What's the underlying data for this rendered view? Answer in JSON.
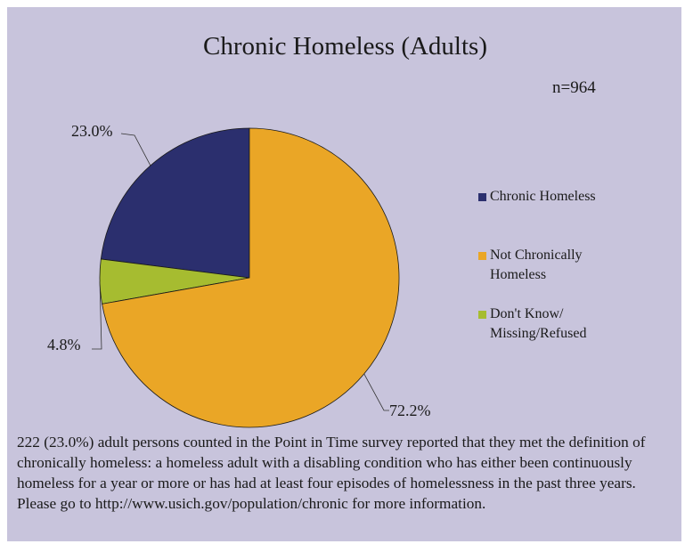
{
  "chart_data": {
    "type": "pie",
    "title": "Chronic Homeless (Adults)",
    "note": "n=964",
    "slices": [
      {
        "name": "Chronic Homeless",
        "value": 23.0,
        "label": "23.0%",
        "color": "#2b2f6e"
      },
      {
        "name": "Not Chronically\nHomeless",
        "value": 72.2,
        "label": "72.2%",
        "color": "#eaa626"
      },
      {
        "name": "Don't Know/\nMissing/Refused",
        "value": 4.8,
        "label": "4.8%",
        "color": "#a6bc30"
      }
    ],
    "legend_position": "right"
  },
  "description": {
    "paragraph": "222 (23.0%) adult persons counted in the Point in Time survey reported that they met the definition of chronically homeless: a homeless adult with a disabling condition who has either been continuously homeless for a year or more or has had at least four episodes of homelessness in the past three years.",
    "link_line": "Please go to http://www.usich.gov/population/chronic for more information."
  }
}
